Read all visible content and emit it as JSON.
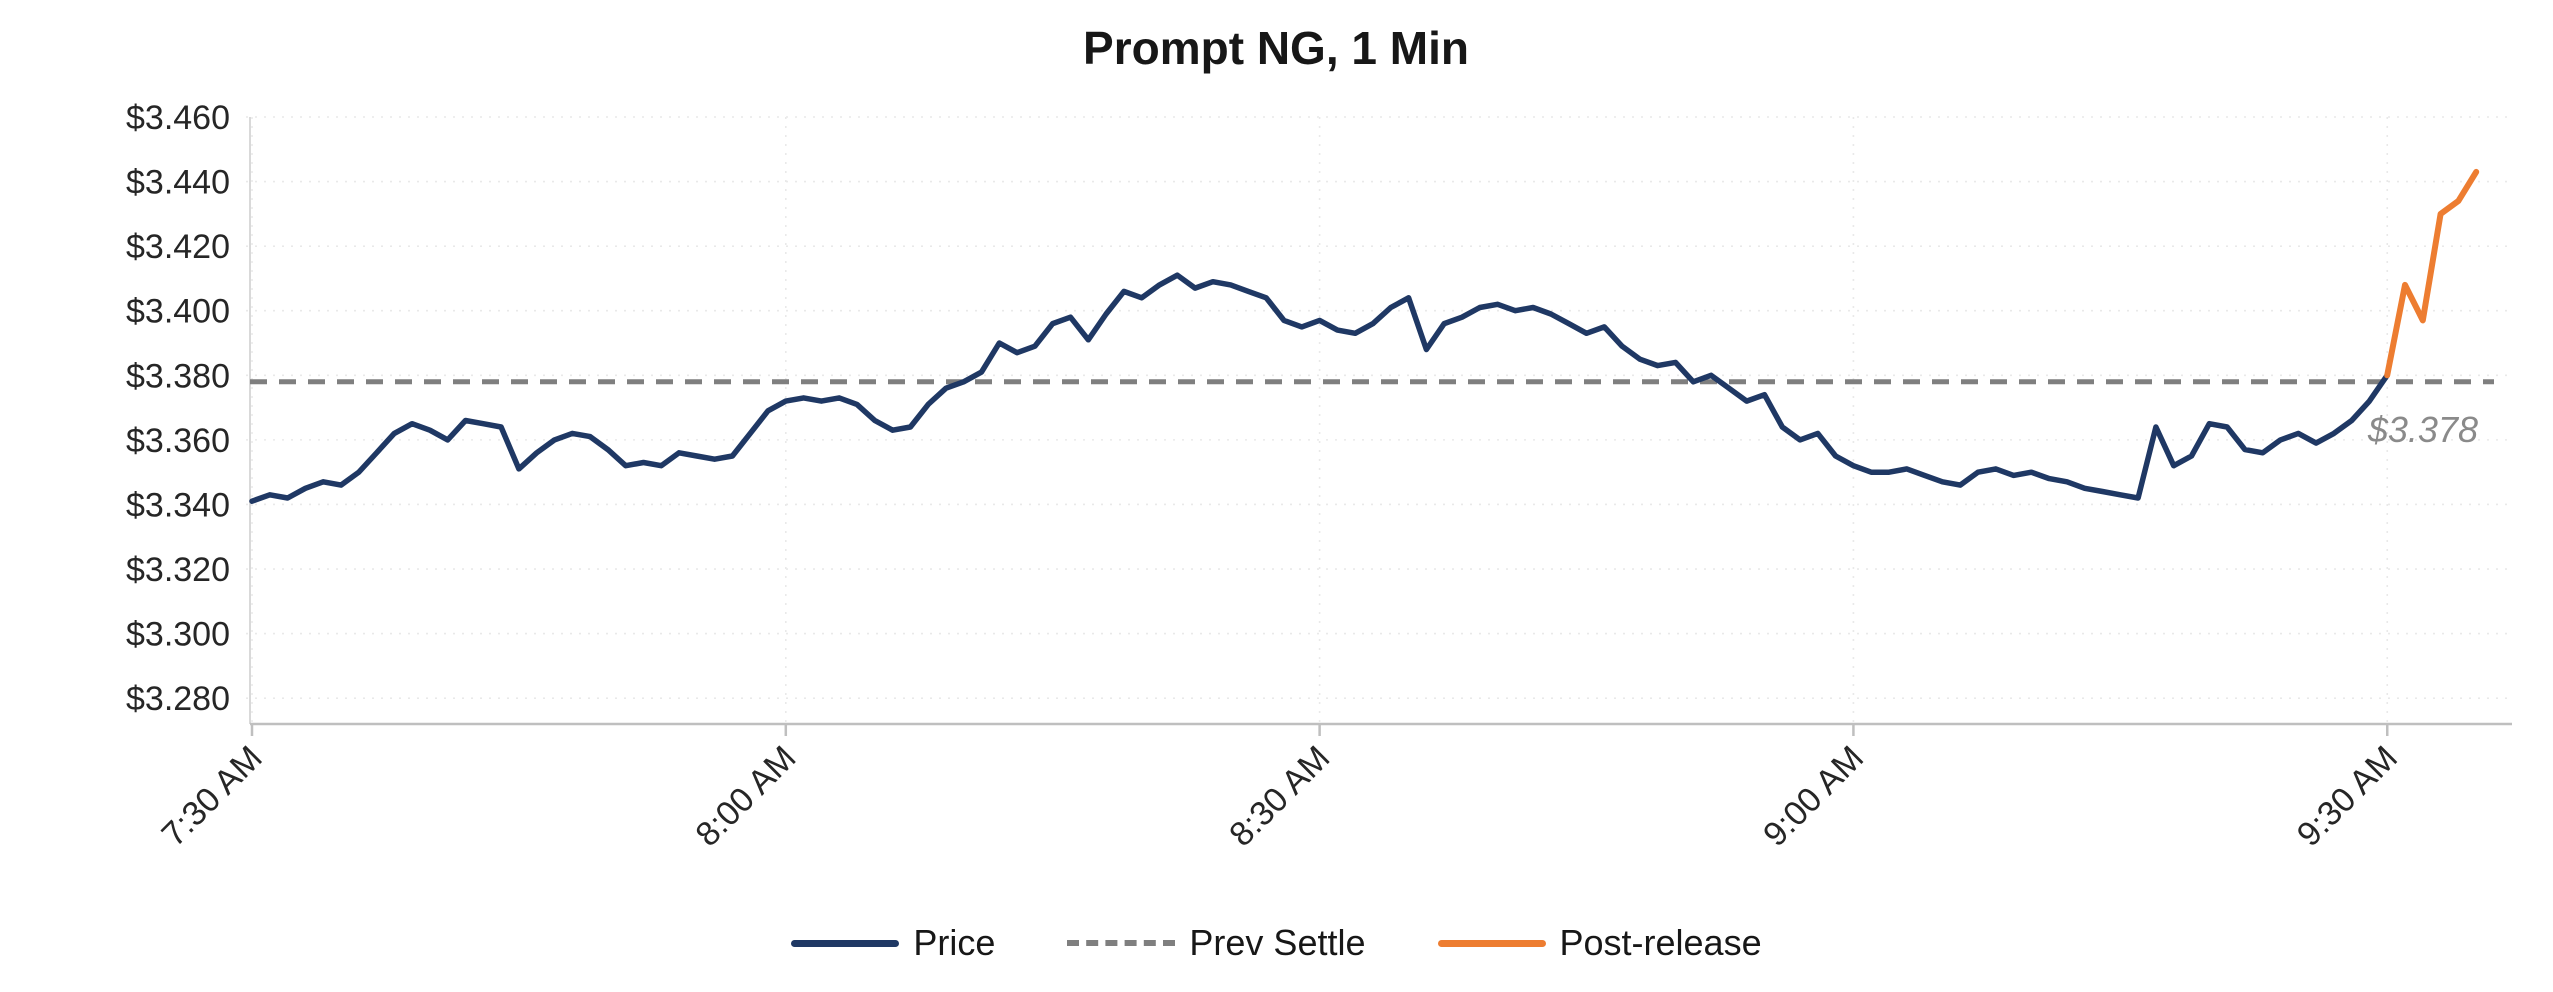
{
  "chart_data": {
    "type": "line",
    "title": "Prompt NG, 1 Min",
    "ylabel": "",
    "xlabel": "",
    "ylim": [
      3.272,
      3.46
    ],
    "grid": true,
    "legend_position": "bottom",
    "x_interval_minutes": 1,
    "y_ticks": [
      {
        "value": 3.28,
        "label": "$3.280"
      },
      {
        "value": 3.3,
        "label": "$3.300"
      },
      {
        "value": 3.32,
        "label": "$3.320"
      },
      {
        "value": 3.34,
        "label": "$3.340"
      },
      {
        "value": 3.36,
        "label": "$3.360"
      },
      {
        "value": 3.38,
        "label": "$3.380"
      },
      {
        "value": 3.4,
        "label": "$3.400"
      },
      {
        "value": 3.42,
        "label": "$3.420"
      },
      {
        "value": 3.44,
        "label": "$3.440"
      },
      {
        "value": 3.46,
        "label": "$3.460"
      }
    ],
    "x_ticks": [
      {
        "minute": 0,
        "label": "7:30 AM"
      },
      {
        "minute": 30,
        "label": "8:00 AM"
      },
      {
        "minute": 60,
        "label": "8:30 AM"
      },
      {
        "minute": 90,
        "label": "9:00 AM"
      },
      {
        "minute": 120,
        "label": "9:30 AM"
      }
    ],
    "prev_settle": 3.378,
    "annotation": {
      "text": "$3.378"
    },
    "legend": [
      {
        "label": "Price",
        "style": "solid",
        "color": "#1F3864"
      },
      {
        "label": "Prev Settle",
        "style": "dashed",
        "color": "#7F7F7F"
      },
      {
        "label": "Post-release",
        "style": "solid",
        "color": "#ED7D31"
      }
    ],
    "series": [
      {
        "name": "Price",
        "color": "#1F3864",
        "style": "solid",
        "start_time": "7:30 AM",
        "start_minute": 0,
        "values": [
          3.341,
          3.343,
          3.342,
          3.345,
          3.347,
          3.346,
          3.35,
          3.356,
          3.362,
          3.365,
          3.363,
          3.36,
          3.366,
          3.365,
          3.364,
          3.351,
          3.356,
          3.36,
          3.362,
          3.361,
          3.357,
          3.352,
          3.353,
          3.352,
          3.356,
          3.355,
          3.354,
          3.355,
          3.362,
          3.369,
          3.372,
          3.373,
          3.372,
          3.373,
          3.371,
          3.366,
          3.363,
          3.364,
          3.371,
          3.376,
          3.378,
          3.381,
          3.39,
          3.387,
          3.389,
          3.396,
          3.398,
          3.391,
          3.399,
          3.406,
          3.404,
          3.408,
          3.411,
          3.407,
          3.409,
          3.408,
          3.406,
          3.404,
          3.397,
          3.395,
          3.397,
          3.394,
          3.393,
          3.396,
          3.401,
          3.404,
          3.388,
          3.396,
          3.398,
          3.401,
          3.402,
          3.4,
          3.401,
          3.399,
          3.396,
          3.393,
          3.395,
          3.389,
          3.385,
          3.383,
          3.384,
          3.378,
          3.38,
          3.376,
          3.372,
          3.374,
          3.364,
          3.36,
          3.362,
          3.355,
          3.352,
          3.35,
          3.35,
          3.351,
          3.349,
          3.347,
          3.346,
          3.35,
          3.351,
          3.349,
          3.35,
          3.348,
          3.347,
          3.345,
          3.344,
          3.343,
          3.342,
          3.364,
          3.352,
          3.355,
          3.365,
          3.364,
          3.357,
          3.356,
          3.36,
          3.362,
          3.359,
          3.362,
          3.366,
          3.372,
          3.38
        ]
      },
      {
        "name": "Prev Settle",
        "color": "#7F7F7F",
        "style": "dashed",
        "value": 3.378
      },
      {
        "name": "Post-release",
        "color": "#ED7D31",
        "style": "solid",
        "start_time": "9:30 AM",
        "start_minute": 120,
        "values": [
          3.38,
          3.408,
          3.397,
          3.43,
          3.434,
          3.443
        ]
      }
    ]
  }
}
